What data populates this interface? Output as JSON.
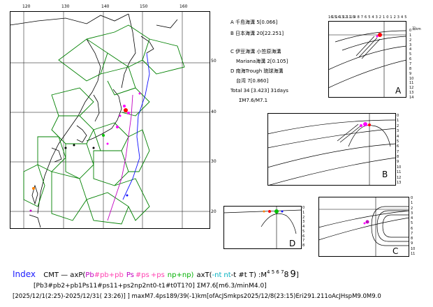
{
  "map": {
    "lon_ticks": [
      "120",
      "130",
      "140",
      "150",
      "160"
    ],
    "lat_ticks": [
      "50",
      "40",
      "30",
      "20"
    ]
  },
  "legend": {
    "lines": [
      "A 千島海溝 5[0.066]",
      "B 日本海溝 20[22.251]",
      "C 伊豆海溝 小笠原海溝",
      "Mariana海溝 2[0.105]",
      "D 南海Trough 琉球海溝",
      "台湾 7[0.860]",
      "Total 34 [3.423] 31days",
      "ΣM7.6/M7.1"
    ]
  },
  "panels": {
    "a": {
      "label": "A",
      "depth_unit": "百km",
      "depth_ticks": [
        "0",
        "1",
        "2",
        "3",
        "4",
        "5",
        "6",
        "7",
        "8",
        "9",
        "10",
        "11",
        "12",
        "13",
        "14"
      ],
      "dist_ticks": [
        "16",
        "15",
        "14",
        "13",
        "12",
        "11",
        "10",
        "9",
        "8",
        "7",
        "6",
        "5",
        "4",
        "3",
        "2",
        "1",
        "0",
        "1",
        "2",
        "3",
        "4",
        "5"
      ]
    },
    "b": {
      "label": "B",
      "depth_ticks": [
        "0",
        "1",
        "2",
        "3",
        "4",
        "5",
        "6",
        "7",
        "8",
        "9",
        "10",
        "11",
        "12",
        "13"
      ]
    },
    "c": {
      "label": "C",
      "depth_ticks": [
        "0",
        "1",
        "2",
        "3",
        "4",
        "5",
        "6",
        "7",
        "8",
        "9",
        "10",
        "11"
      ]
    },
    "d": {
      "label": "D",
      "depth_ticks": [
        "0",
        "1",
        "2",
        "3",
        "4",
        "5",
        "6",
        "7",
        "8"
      ]
    }
  },
  "footer": {
    "index_label": "Index",
    "line1": {
      "prefix": "CMT  —  axP(",
      "pb": "Pb",
      "pb2": "#pb",
      "pb3": "+pb",
      "ps": "Ps",
      "ps2": "#ps",
      "ps3": "+ps",
      "np": "np+np)",
      "axt": "axT(",
      "nt": "-nt",
      "nt2": "nt",
      "rest": "-t #t T)  :M",
      "mags": "4 5 6 7",
      "mag8": "8",
      "mag9": "9",
      "close": "]"
    },
    "line2": "[Pb3#pb2+pb1Ps11#ps11+ps2np2nt0-t1#t0T1?0] ΣM7.6[m6.3/minM4.0]",
    "line3": "[2025/12/1(2:25)-2025/12/31( 23:26)] ] maxM7.4ps189/39(-1)km[ofAcJSmkps2025/12/8(23:15)Eri291.211oAcJHspM9.0M9.0"
  },
  "colors": {
    "grid": "#000000",
    "plates": "#008000",
    "trench_blue": "#1010ff",
    "trench_magenta": "#c000c0",
    "quake_red": "#ff0000",
    "quake_magenta": "#ff00ff",
    "quake_green": "#00c000"
  }
}
